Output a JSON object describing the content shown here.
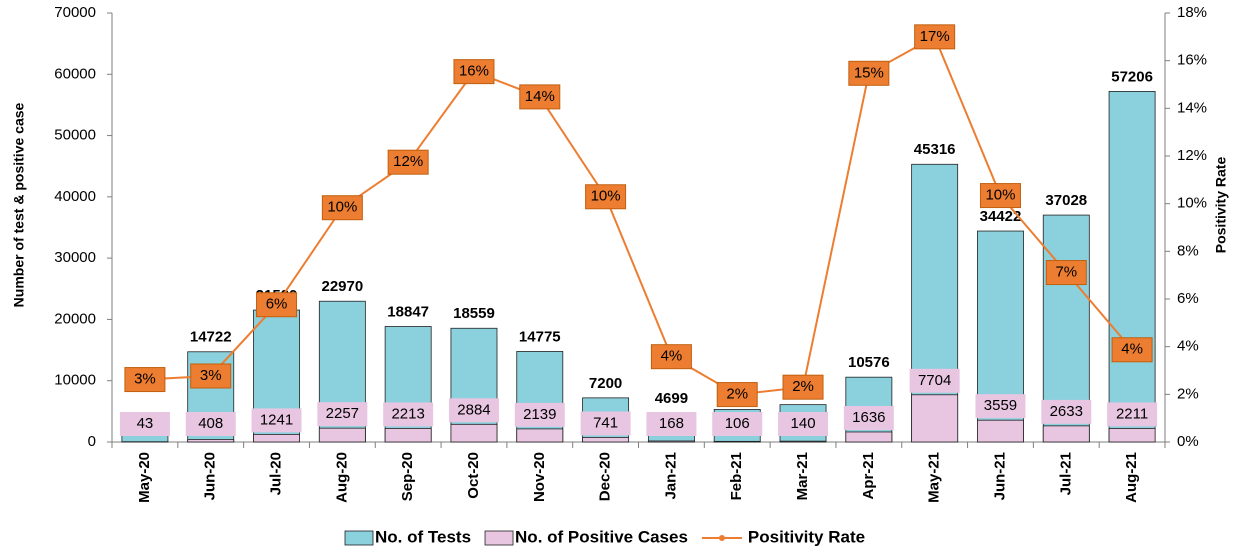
{
  "chart_data": {
    "type": "bar_line",
    "ylabel": "Number of test & positive case",
    "y2label": "Positivity Rate",
    "categories": [
      "May-20",
      "Jun-20",
      "Jul-20",
      "Aug-20",
      "Sep-20",
      "Oct-20",
      "Nov-20",
      "Dec-20",
      "Jan-21",
      "Feb-21",
      "Mar-21",
      "Apr-21",
      "May-21",
      "Jun-21",
      "Jul-21",
      "Aug-21"
    ],
    "series": [
      {
        "name": "No. of Tests",
        "color": "#8ad0dd",
        "values": [
          1643,
          14722,
          21530,
          22970,
          18847,
          18559,
          14775,
          7200,
          4699,
          5320,
          6096,
          10576,
          45316,
          34422,
          37028,
          57206
        ]
      },
      {
        "name": "No. of Positive Cases",
        "color": "#e8c6e2",
        "values": [
          43,
          408,
          1241,
          2257,
          2213,
          2884,
          2139,
          741,
          168,
          106,
          140,
          1636,
          7704,
          3559,
          2633,
          2211
        ]
      },
      {
        "name": "Positivity Rate",
        "color": "#ed7d31",
        "axis": "y2",
        "values": [
          2.62,
          2.77,
          5.76,
          9.83,
          11.74,
          15.54,
          14.48,
          10.29,
          3.58,
          1.99,
          2.3,
          15.47,
          17.0,
          10.34,
          7.11,
          3.87
        ],
        "value_labels": [
          "3%",
          "3%",
          "6%",
          "10%",
          "12%",
          "16%",
          "14%",
          "10%",
          "4%",
          "2%",
          "2%",
          "15%",
          "17%",
          "10%",
          "7%",
          "4%"
        ]
      }
    ],
    "ylim": [
      0,
      70000
    ],
    "yticks": [
      0,
      10000,
      20000,
      30000,
      40000,
      50000,
      60000,
      70000
    ],
    "y2lim": [
      0,
      18
    ],
    "y2ticks": [
      {
        "value": 0,
        "label": "0%"
      },
      {
        "value": 2,
        "label": "2%"
      },
      {
        "value": 4,
        "label": "4%"
      },
      {
        "value": 6,
        "label": "6%"
      },
      {
        "value": 8,
        "label": "8%"
      },
      {
        "value": 10,
        "label": "10%"
      },
      {
        "value": 12,
        "label": "12%"
      },
      {
        "value": 14,
        "label": "14%"
      },
      {
        "value": 16,
        "label": "16%"
      },
      {
        "value": 18,
        "label": "18%"
      }
    ],
    "legend": "bottom"
  }
}
